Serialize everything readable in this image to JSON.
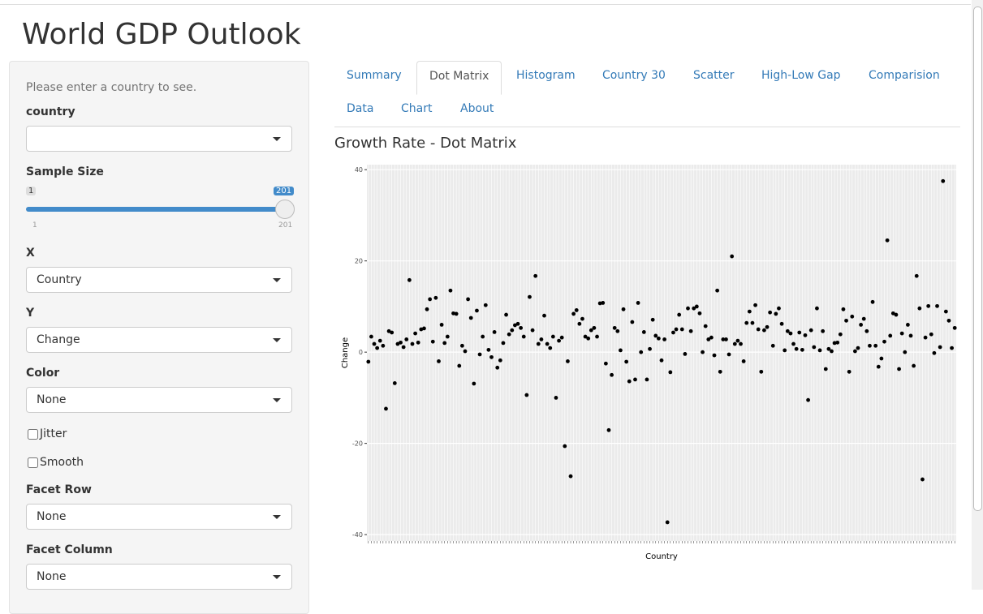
{
  "app_title": "World GDP Outlook",
  "sidebar": {
    "help": "Please enter a country to see.",
    "country_label": "country",
    "sample_label": "Sample Size",
    "slider_min": 1,
    "slider_max": 201,
    "slider_value": 201,
    "x_label": "X",
    "x_value": "Country",
    "y_label": "Y",
    "y_value": "Change",
    "color_label": "Color",
    "color_value": "None",
    "jitter": "Jitter",
    "smooth": "Smooth",
    "facet_row_label": "Facet Row",
    "facet_row_value": "None",
    "facet_col_label": "Facet Column",
    "facet_col_value": "None"
  },
  "tabs": [
    "Summary",
    "Dot Matrix",
    "Histogram",
    "Country 30",
    "Scatter",
    "High-Low Gap",
    "Comparision",
    "Data",
    "Chart",
    "About"
  ],
  "active_tab": 1,
  "chart_data": {
    "type": "dot",
    "title": "Growth Rate - Dot Matrix",
    "x_label": "Country",
    "y_label": "Change",
    "color": "#000000",
    "grid": true,
    "ylim": [
      -41.4,
      41.1
    ],
    "yticks": [
      -40,
      -20,
      0,
      20,
      40
    ],
    "values": [
      -2.1,
      3.4,
      1.8,
      0.9,
      2.5,
      1.4,
      -12.4,
      4.6,
      4.3,
      -6.8,
      1.8,
      2.1,
      1.1,
      2.8,
      15.8,
      1.8,
      4.1,
      2.1,
      5.0,
      5.2,
      9.4,
      11.6,
      2.3,
      11.9,
      -2.0,
      6.0,
      2.0,
      3.4,
      13.5,
      8.5,
      8.4,
      -3.0,
      1.4,
      0.2,
      11.6,
      7.5,
      -6.9,
      9.1,
      -0.5,
      3.4,
      10.3,
      0.5,
      -1.1,
      4.4,
      -3.4,
      -1.8,
      2.0,
      8.2,
      3.9,
      4.8,
      5.9,
      6.2,
      5.3,
      3.4,
      -9.4,
      12.1,
      4.8,
      16.7,
      1.8,
      2.8,
      8.0,
      1.8,
      0.9,
      3.4,
      -10.0,
      2.5,
      3.2,
      -20.6,
      -2.0,
      -27.2,
      8.4,
      9.2,
      6.2,
      7.3,
      3.4,
      3.0,
      4.8,
      5.3,
      3.4,
      10.7,
      10.8,
      -2.5,
      -17.1,
      -5.0,
      5.3,
      4.6,
      0.4,
      9.4,
      -2.1,
      -6.4,
      6.6,
      -6.0,
      10.8,
      0.0,
      4.4,
      -6.0,
      0.7,
      7.1,
      3.6,
      3.0,
      -1.8,
      2.8,
      -37.3,
      -4.4,
      4.3,
      5.0,
      8.2,
      5.0,
      -0.4,
      9.6,
      4.6,
      9.6,
      10.0,
      8.5,
      0.0,
      5.7,
      2.8,
      3.2,
      -0.7,
      13.5,
      -4.3,
      2.8,
      2.8,
      -0.5,
      21.0,
      1.8,
      2.5,
      1.8,
      -2.0,
      6.4,
      8.9,
      6.4,
      10.3,
      5.0,
      -4.3,
      4.8,
      5.5,
      8.7,
      1.4,
      8.4,
      9.6,
      6.2,
      0.4,
      4.6,
      4.1,
      1.8,
      0.7,
      4.3,
      0.5,
      3.7,
      -10.5,
      4.8,
      1.1,
      9.6,
      0.4,
      4.6,
      -3.7,
      0.7,
      0.2,
      2.0,
      2.1,
      3.9,
      9.4,
      6.9,
      -4.3,
      7.8,
      0.2,
      0.9,
      6.0,
      7.3,
      4.6,
      1.4,
      11.0,
      1.4,
      -3.2,
      -1.4,
      2.3,
      24.5,
      3.6,
      8.5,
      8.2,
      -3.7,
      4.1,
      0.0,
      6.0,
      3.6,
      -3.0,
      16.7,
      9.6,
      -27.9,
      3.2,
      10.1,
      3.9,
      -0.2,
      10.1,
      1.1,
      37.5,
      8.9,
      6.9,
      0.9,
      5.3
    ]
  }
}
